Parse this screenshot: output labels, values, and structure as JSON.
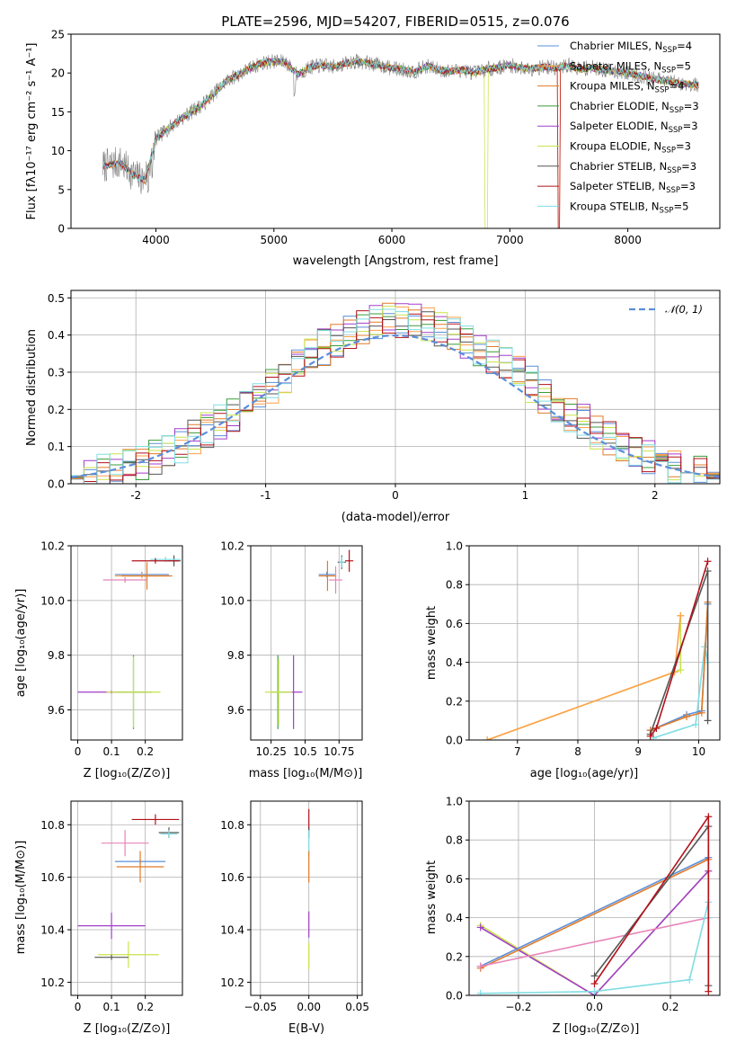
{
  "colors": {
    "chabrier_miles": "#5b8fd9",
    "salpeter_miles": "#ffa04a",
    "kroupa_miles": "#e07b2a",
    "chabrier_elodie": "#3a9b3a",
    "salpeter_elodie": "#a23ec8",
    "kroupa_elodie": "#c9e34a",
    "chabrier_stelib": "#555555",
    "salpeter_stelib": "#b3121a",
    "kroupa_stelib": "#7fdde3",
    "pink": "#e884b8",
    "gaussian": "#5b8fd9"
  },
  "chart_data": [
    {
      "id": "spectrum",
      "type": "line",
      "title": "PLATE=2596, MJD=54207, FIBERID=0515, z=0.076",
      "xlabel": "wavelength [Angstrom, rest frame]",
      "ylabel": "Flux [fλ10⁻¹⁷ erg cm⁻² s⁻¹ A⁻¹]",
      "xlim": [
        3280,
        8780
      ],
      "ylim": [
        0,
        25
      ],
      "xticks": [
        4000,
        5000,
        6000,
        7000,
        8000
      ],
      "yticks": [
        0,
        5,
        10,
        15,
        20,
        25
      ],
      "grid": false,
      "legend_position": "top-right",
      "continuum": [
        [
          3550,
          8.0
        ],
        [
          3700,
          8.5
        ],
        [
          3800,
          7.0
        ],
        [
          3900,
          6.2
        ],
        [
          3950,
          8.5
        ],
        [
          4000,
          11.5
        ],
        [
          4100,
          12.8
        ],
        [
          4200,
          14.0
        ],
        [
          4300,
          15.0
        ],
        [
          4400,
          16.0
        ],
        [
          4500,
          17.5
        ],
        [
          4600,
          19.0
        ],
        [
          4700,
          19.8
        ],
        [
          4800,
          20.6
        ],
        [
          4900,
          21.3
        ],
        [
          5000,
          21.5
        ],
        [
          5100,
          21.4
        ],
        [
          5200,
          19.8
        ],
        [
          5300,
          20.7
        ],
        [
          5400,
          21.0
        ],
        [
          5500,
          20.8
        ],
        [
          5600,
          21.2
        ],
        [
          5700,
          21.5
        ],
        [
          5800,
          21.3
        ],
        [
          5900,
          21.0
        ],
        [
          6000,
          20.6
        ],
        [
          6100,
          20.4
        ],
        [
          6200,
          20.2
        ],
        [
          6300,
          20.9
        ],
        [
          6400,
          20.4
        ],
        [
          6500,
          20.2
        ],
        [
          6600,
          20.4
        ],
        [
          6700,
          20.0
        ],
        [
          6800,
          20.5
        ],
        [
          6900,
          20.7
        ],
        [
          7000,
          21.0
        ],
        [
          7100,
          20.6
        ],
        [
          7200,
          20.6
        ],
        [
          7300,
          20.8
        ],
        [
          7400,
          20.6
        ],
        [
          7500,
          21.0
        ],
        [
          7600,
          20.5
        ],
        [
          7700,
          20.7
        ],
        [
          7800,
          20.4
        ],
        [
          7900,
          20.2
        ],
        [
          8000,
          20.0
        ],
        [
          8100,
          19.7
        ],
        [
          8200,
          19.3
        ],
        [
          8300,
          19.0
        ],
        [
          8400,
          18.8
        ],
        [
          8500,
          18.6
        ],
        [
          8600,
          18.4
        ]
      ],
      "series": [
        {
          "name": "Chabrier MILES, N",
          "sub": "SSP",
          "suffix": "=4",
          "color_key": "chabrier_miles"
        },
        {
          "name": "Salpeter MILES, N",
          "sub": "SSP",
          "suffix": "=5",
          "color_key": "salpeter_miles"
        },
        {
          "name": "Kroupa MILES, N",
          "sub": "SSP",
          "suffix": "=4",
          "color_key": "kroupa_miles"
        },
        {
          "name": "Chabrier ELODIE, N",
          "sub": "SSP",
          "suffix": "=3",
          "color_key": "chabrier_elodie"
        },
        {
          "name": "Salpeter ELODIE, N",
          "sub": "SSP",
          "suffix": "=3",
          "color_key": "salpeter_elodie"
        },
        {
          "name": "Kroupa ELODIE, N",
          "sub": "SSP",
          "suffix": "=3",
          "color_key": "kroupa_elodie"
        },
        {
          "name": "Chabrier STELIB, N",
          "sub": "SSP",
          "suffix": "=3",
          "color_key": "chabrier_stelib"
        },
        {
          "name": "Salpeter STELIB, N",
          "sub": "SSP",
          "suffix": "=3",
          "color_key": "salpeter_stelib"
        },
        {
          "name": "Kroupa STELIB, N",
          "sub": "SSP",
          "suffix": "=5",
          "color_key": "kroupa_stelib"
        }
      ]
    },
    {
      "id": "residuals",
      "type": "line",
      "xlabel": "(data-model)/error",
      "ylabel": "Normed distribution",
      "xlim": [
        -2.5,
        2.5
      ],
      "ylim": [
        0,
        0.52
      ],
      "xticks": [
        -2,
        -1,
        0,
        1,
        2
      ],
      "yticks": [
        0.0,
        0.1,
        0.2,
        0.3,
        0.4,
        0.5
      ],
      "grid": true,
      "legend_position": "top-right",
      "gaussian_label": "𝒩(0, 1)",
      "bin_width": 0.1
    },
    {
      "id": "age_vs_Z",
      "type": "scatter",
      "xlabel": "Z [log₁₀(Z/Z⊙)]",
      "ylabel": "age  [log₁₀(age/yr)]",
      "xlim": [
        -0.02,
        0.31
      ],
      "ylim": [
        9.49,
        10.2
      ],
      "xticks": [
        0.0,
        0.1,
        0.2
      ],
      "yticks": [
        9.6,
        9.8,
        10.0,
        10.2
      ],
      "grid": true,
      "points": [
        {
          "x": 0.285,
          "y": 10.145,
          "ex": 0.02,
          "ey": 0.02,
          "color_key": "chabrier_stelib"
        },
        {
          "x": 0.26,
          "y": 10.15,
          "ex": 0.045,
          "ey": 0.01,
          "color_key": "kroupa_stelib"
        },
        {
          "x": 0.23,
          "y": 10.145,
          "ex": 0.07,
          "ey": 0.01,
          "color_key": "salpeter_stelib"
        },
        {
          "x": 0.19,
          "y": 10.095,
          "ex": 0.08,
          "ey": 0.01,
          "color_key": "chabrier_miles"
        },
        {
          "x": 0.19,
          "y": 10.09,
          "ex": 0.08,
          "ey": 0.01,
          "color_key": "salpeter_miles"
        },
        {
          "x": 0.205,
          "y": 10.09,
          "ex": 0.075,
          "ey": 0.05,
          "color_key": "kroupa_miles"
        },
        {
          "x": 0.14,
          "y": 10.075,
          "ex": 0.065,
          "ey": 0.01,
          "color_key": "pink"
        },
        {
          "x": 0.1,
          "y": 9.665,
          "ex": 0.1,
          "ey": 0.005,
          "color_key": "salpeter_elodie"
        },
        {
          "x": 0.165,
          "y": 9.665,
          "ex": 0.055,
          "ey": 0.135,
          "color_key": "chabrier_elodie"
        },
        {
          "x": 0.165,
          "y": 9.665,
          "ex": 0.08,
          "ey": 0.13,
          "color_key": "kroupa_elodie"
        }
      ]
    },
    {
      "id": "age_vs_mass",
      "type": "scatter",
      "xlabel": "mass [log₁₀(M/M⊙)]",
      "xlim": [
        10.1,
        10.92
      ],
      "ylim": [
        9.49,
        10.2
      ],
      "xticks": [
        10.25,
        10.5,
        10.75
      ],
      "yticks": [
        9.6,
        9.8,
        10.0,
        10.2
      ],
      "grid": true,
      "points": [
        {
          "x": 10.825,
          "y": 10.145,
          "ex": 0.03,
          "ey": 0.04,
          "color_key": "salpeter_stelib"
        },
        {
          "x": 10.77,
          "y": 10.14,
          "ex": 0.03,
          "ey": 0.025,
          "color_key": "chabrier_stelib"
        },
        {
          "x": 10.77,
          "y": 10.14,
          "ex": 0.02,
          "ey": 0.02,
          "color_key": "kroupa_stelib"
        },
        {
          "x": 10.66,
          "y": 10.095,
          "ex": 0.06,
          "ey": 0.01,
          "color_key": "chabrier_miles"
        },
        {
          "x": 10.665,
          "y": 10.09,
          "ex": 0.065,
          "ey": 0.055,
          "color_key": "kroupa_miles"
        },
        {
          "x": 10.725,
          "y": 10.075,
          "ex": 0.05,
          "ey": 0.05,
          "color_key": "pink"
        },
        {
          "x": 10.415,
          "y": 9.665,
          "ex": 0.065,
          "ey": 0.135,
          "color_key": "salpeter_elodie"
        },
        {
          "x": 10.3,
          "y": 9.665,
          "ex": 0.05,
          "ey": 0.135,
          "color_key": "chabrier_elodie"
        },
        {
          "x": 10.305,
          "y": 9.665,
          "ex": 0.1,
          "ey": 0.12,
          "color_key": "kroupa_elodie"
        }
      ]
    },
    {
      "id": "weight_vs_age",
      "type": "line",
      "xlabel": "age  [log₁₀(age/yr)]",
      "ylabel": "mass weight",
      "xlim": [
        6.2,
        10.35
      ],
      "ylim": [
        0,
        1.0
      ],
      "xticks": [
        7,
        8,
        9,
        10
      ],
      "yticks": [
        0.0,
        0.2,
        0.4,
        0.6,
        0.8,
        1.0
      ],
      "grid": true,
      "series": [
        {
          "color_key": "kroupa_elodie",
          "x": [
            6.5,
            9.7,
            9.7
          ],
          "y": [
            0.0,
            0.36,
            0.64
          ]
        },
        {
          "color_key": "salpeter_miles",
          "x": [
            6.5,
            9.6,
            9.7
          ],
          "y": [
            0.0,
            0.35,
            0.64
          ]
        },
        {
          "color_key": "kroupa_stelib",
          "x": [
            9.25,
            9.95,
            10.1,
            10.15
          ],
          "y": [
            0.01,
            0.08,
            0.48,
            0.4
          ]
        },
        {
          "color_key": "chabrier_miles",
          "x": [
            9.2,
            9.8,
            10.05,
            10.15
          ],
          "y": [
            0.05,
            0.13,
            0.15,
            0.7
          ]
        },
        {
          "color_key": "kroupa_miles",
          "x": [
            9.2,
            9.8,
            10.05,
            10.15
          ],
          "y": [
            0.05,
            0.12,
            0.14,
            0.71
          ]
        },
        {
          "color_key": "chabrier_stelib",
          "x": [
            9.2,
            10.15,
            10.15
          ],
          "y": [
            0.03,
            0.87,
            0.1
          ]
        },
        {
          "color_key": "salpeter_stelib",
          "x": [
            9.2,
            9.3,
            10.15
          ],
          "y": [
            0.02,
            0.06,
            0.92
          ]
        }
      ]
    },
    {
      "id": "mass_vs_Z",
      "type": "scatter",
      "xlabel": "Z [log₁₀(Z/Z⊙)]",
      "ylabel": "mass [log₁₀(M/M⊙)]",
      "xlim": [
        -0.02,
        0.31
      ],
      "ylim": [
        10.15,
        10.89
      ],
      "xticks": [
        0.0,
        0.1,
        0.2
      ],
      "yticks": [
        10.2,
        10.4,
        10.6,
        10.8
      ],
      "grid": true,
      "points": [
        {
          "x": 0.23,
          "y": 10.82,
          "ex": 0.07,
          "ey": 0.02,
          "color_key": "salpeter_stelib"
        },
        {
          "x": 0.27,
          "y": 10.77,
          "ex": 0.03,
          "ey": 0.02,
          "color_key": "chabrier_stelib"
        },
        {
          "x": 0.27,
          "y": 10.765,
          "ex": 0.025,
          "ey": 0.015,
          "color_key": "kroupa_stelib"
        },
        {
          "x": 0.14,
          "y": 10.73,
          "ex": 0.07,
          "ey": 0.05,
          "color_key": "pink"
        },
        {
          "x": 0.185,
          "y": 10.66,
          "ex": 0.075,
          "ey": 0.01,
          "color_key": "chabrier_miles"
        },
        {
          "x": 0.185,
          "y": 10.64,
          "ex": 0.07,
          "ey": 0.06,
          "color_key": "kroupa_miles"
        },
        {
          "x": 0.1,
          "y": 10.415,
          "ex": 0.1,
          "ey": 0.05,
          "color_key": "salpeter_elodie"
        },
        {
          "x": 0.15,
          "y": 10.305,
          "ex": 0.09,
          "ey": 0.05,
          "color_key": "kroupa_elodie"
        },
        {
          "x": 0.1,
          "y": 10.295,
          "ex": 0.05,
          "ey": 0.01,
          "color_key": "chabrier_stelib"
        }
      ]
    },
    {
      "id": "mass_vs_EBV",
      "type": "scatter",
      "xlabel": "E(B-V)",
      "xlim": [
        -0.06,
        0.055
      ],
      "ylim": [
        10.15,
        10.89
      ],
      "xticks": [
        -0.05,
        0.0,
        0.05
      ],
      "xticklabels": [
        "−0.05",
        "0.00",
        "0.05"
      ],
      "yticks": [
        10.2,
        10.4,
        10.6,
        10.8
      ],
      "grid": true,
      "points": [
        {
          "x": 0,
          "y": 10.82,
          "ex": 0,
          "ey": 0.04,
          "color_key": "salpeter_stelib"
        },
        {
          "x": 0,
          "y": 10.77,
          "ex": 0,
          "ey": 0.02,
          "color_key": "chabrier_stelib"
        },
        {
          "x": 0,
          "y": 10.73,
          "ex": 0,
          "ey": 0.05,
          "color_key": "kroupa_stelib"
        },
        {
          "x": 0,
          "y": 10.64,
          "ex": 0,
          "ey": 0.06,
          "color_key": "kroupa_miles"
        },
        {
          "x": 0,
          "y": 10.42,
          "ex": 0,
          "ey": 0.05,
          "color_key": "salpeter_elodie"
        },
        {
          "x": 0,
          "y": 10.3,
          "ex": 0,
          "ey": 0.05,
          "color_key": "kroupa_elodie"
        }
      ]
    },
    {
      "id": "weight_vs_Z",
      "type": "line",
      "xlabel": "Z [log₁₀(Z/Z⊙)]",
      "ylabel": "mass weight",
      "xlim": [
        -0.33,
        0.33
      ],
      "ylim": [
        0,
        1.0
      ],
      "xticks": [
        -0.2,
        0.0,
        0.2
      ],
      "xticklabels": [
        "−0.2",
        "0.0",
        "0.2"
      ],
      "yticks": [
        0.0,
        0.2,
        0.4,
        0.6,
        0.8,
        1.0
      ],
      "grid": true,
      "series": [
        {
          "color_key": "kroupa_elodie",
          "x": [
            -0.3,
            0.0,
            0.3
          ],
          "y": [
            0.36,
            0.0,
            0.64
          ]
        },
        {
          "color_key": "salpeter_elodie",
          "x": [
            -0.3,
            0.0,
            0.3
          ],
          "y": [
            0.35,
            0.0,
            0.64
          ]
        },
        {
          "color_key": "chabrier_miles",
          "x": [
            -0.3,
            0.3
          ],
          "y": [
            0.15,
            0.71
          ]
        },
        {
          "color_key": "kroupa_miles",
          "x": [
            -0.3,
            0.3
          ],
          "y": [
            0.14,
            0.7
          ]
        },
        {
          "color_key": "pink",
          "x": [
            -0.3,
            0.3
          ],
          "y": [
            0.15,
            0.4
          ]
        },
        {
          "color_key": "kroupa_stelib",
          "x": [
            -0.3,
            0.0,
            0.25,
            0.3,
            0.3
          ],
          "y": [
            0.01,
            0.02,
            0.08,
            0.48,
            0.4
          ]
        },
        {
          "color_key": "chabrier_stelib",
          "x": [
            0.0,
            0.3,
            0.3
          ],
          "y": [
            0.1,
            0.87,
            0.05
          ]
        },
        {
          "color_key": "salpeter_stelib",
          "x": [
            0.0,
            0.3,
            0.3
          ],
          "y": [
            0.06,
            0.92,
            0.02
          ]
        }
      ]
    }
  ]
}
